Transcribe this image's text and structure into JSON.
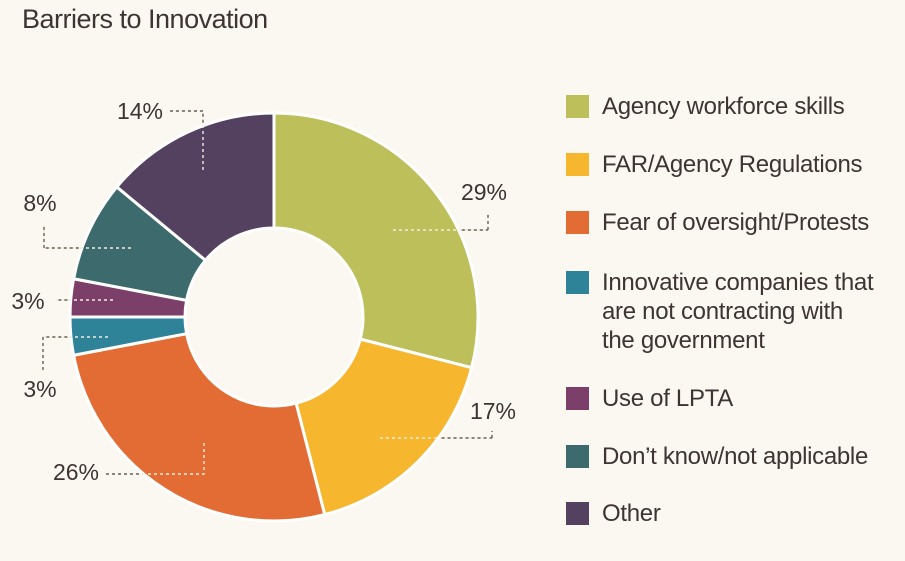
{
  "title": "Barriers to Innovation",
  "chart_data": {
    "type": "pie",
    "title": "Barriers to Innovation",
    "donut": true,
    "legend_position": "right",
    "categories": [
      "Agency workforce skills",
      "FAR/Agency Regulations",
      "Fear of oversight/Protests",
      "Innovative companies that are not contracting with the government",
      "Use of LPTA",
      "Don’t know/not applicable",
      "Other"
    ],
    "legend_labels": [
      "Agency workforce skills",
      "FAR/Agency Regulations",
      "Fear of oversight/Protests",
      "Innovative companies that\nare not contracting with\nthe government",
      "Use of LPTA",
      "Don’t know/not applicable",
      "Other"
    ],
    "values": [
      29,
      17,
      26,
      3,
      3,
      8,
      14
    ],
    "labels": [
      "29%",
      "17%",
      "26%",
      "3%",
      "3%",
      "8%",
      "14%"
    ],
    "colors": [
      "#bdbf5a",
      "#f6b62e",
      "#e36c35",
      "#2f8399",
      "#7c3f6a",
      "#3d6b6d",
      "#54415f"
    ]
  }
}
